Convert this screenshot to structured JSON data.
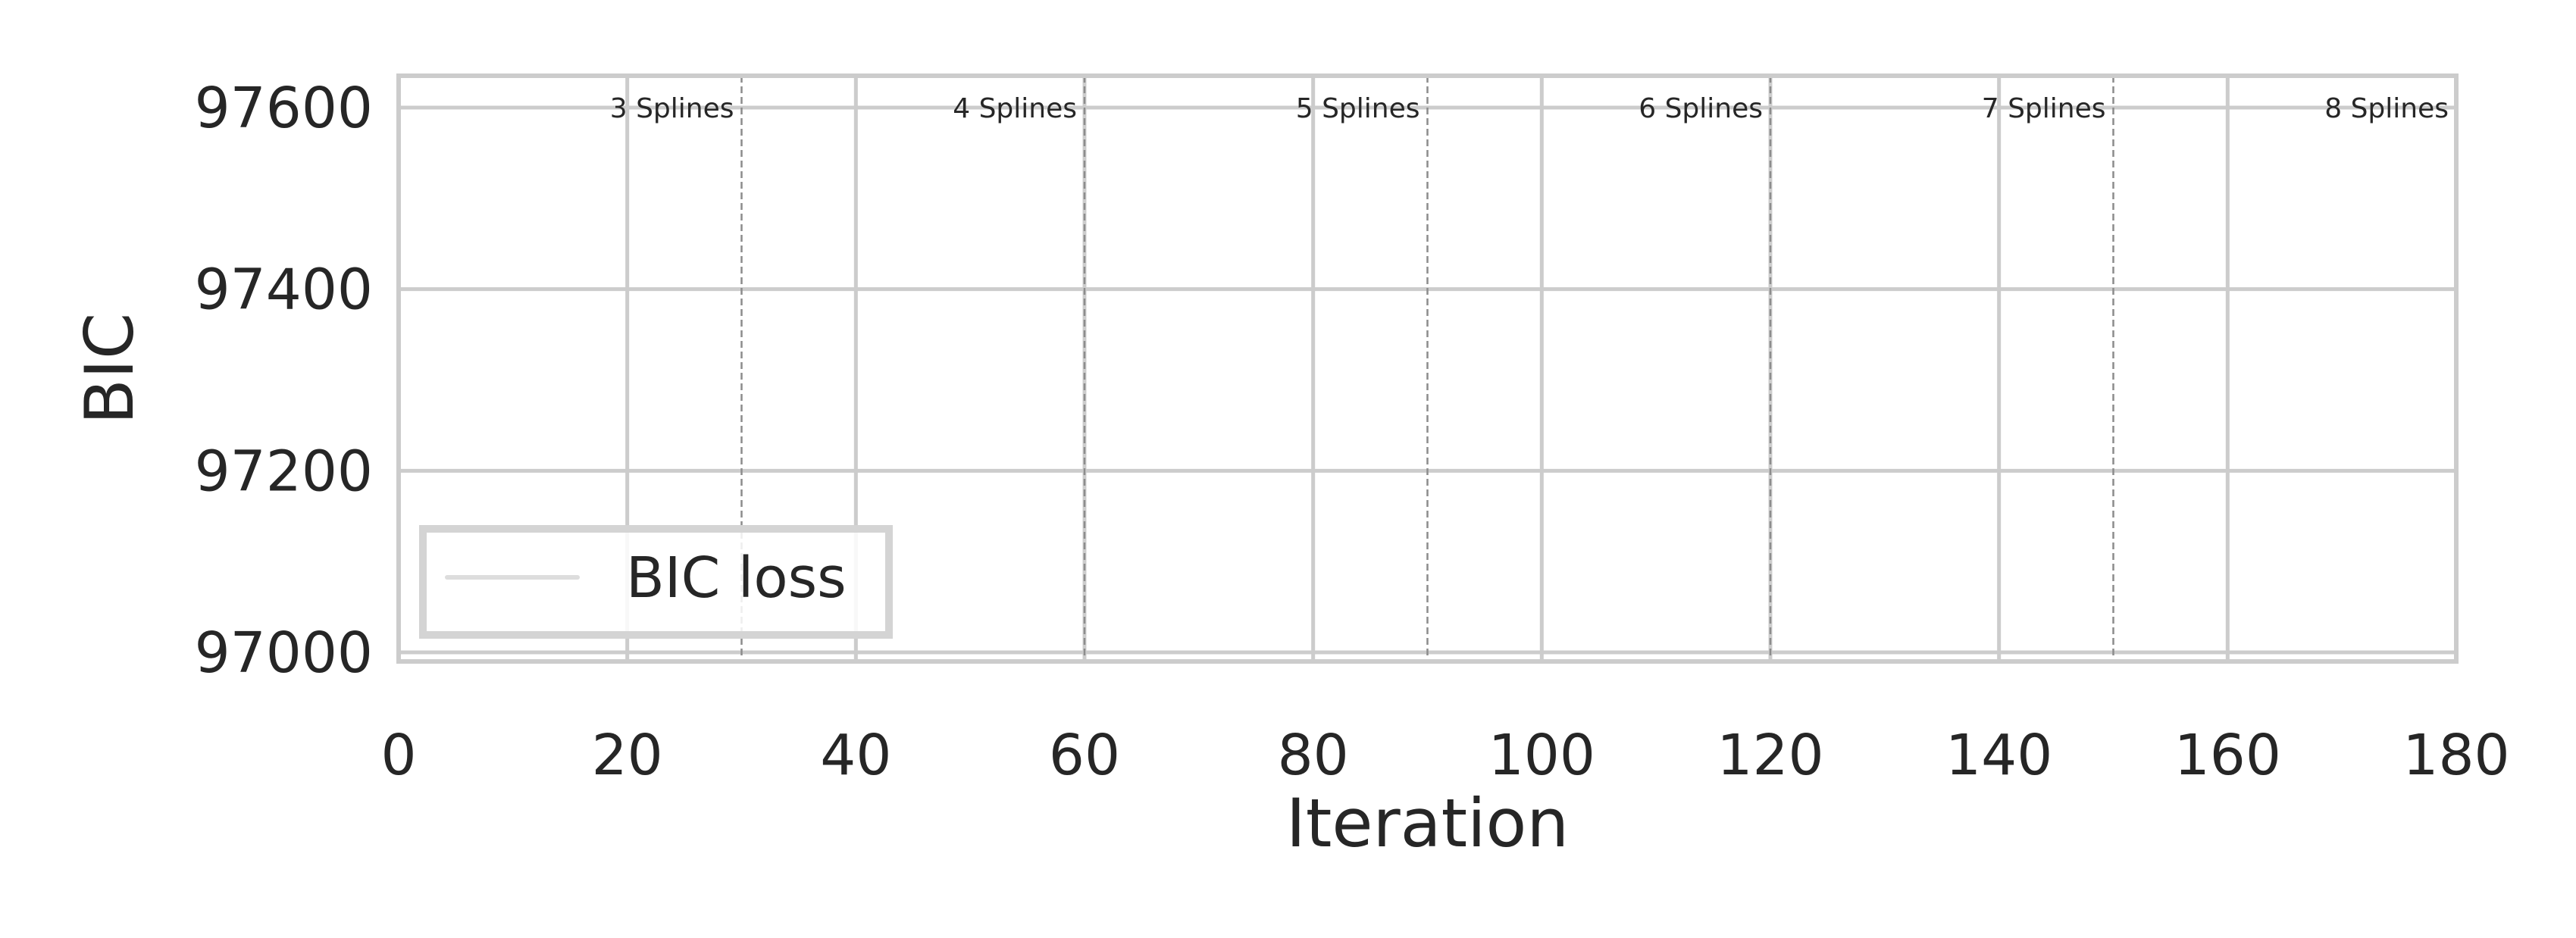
{
  "chart_data": {
    "type": "line",
    "title": "",
    "xlabel": "Iteration",
    "ylabel": "BIC",
    "xlim": [
      0,
      180
    ],
    "ylim": [
      96990,
      97635
    ],
    "xticks": [
      0,
      20,
      40,
      60,
      80,
      100,
      120,
      140,
      160,
      180
    ],
    "xtick_labels": [
      "0",
      "20",
      "40",
      "60",
      "80",
      "100",
      "120",
      "140",
      "160",
      "180"
    ],
    "yticks": [
      97000,
      97200,
      97400,
      97600
    ],
    "ytick_labels": [
      "97000",
      "97200",
      "97400",
      "97600"
    ],
    "grid": true,
    "legend": {
      "placement": "lower-left",
      "entries": [
        "BIC loss"
      ]
    },
    "series": [
      {
        "name": "BIC loss",
        "color": "#ffffff",
        "x": [],
        "y": []
      }
    ],
    "phase_boundaries": [
      30,
      60,
      90,
      120,
      150
    ],
    "phase_labels": [
      {
        "text": "3 Splines",
        "x": 30,
        "y": 97600
      },
      {
        "text": "4 Splines",
        "x": 60,
        "y": 97600
      },
      {
        "text": "5 Splines",
        "x": 90,
        "y": 97600
      },
      {
        "text": "6 Splines",
        "x": 120,
        "y": 97600
      },
      {
        "text": "7 Splines",
        "x": 150,
        "y": 97600
      },
      {
        "text": "8 Splines",
        "x": 180,
        "y": 97600
      }
    ],
    "colors": {
      "grid": "#cccccc",
      "frame": "#cccccc",
      "boundary": "#8c8c8c",
      "text": "#262626",
      "legend_frame": "#d4d4d4"
    }
  }
}
